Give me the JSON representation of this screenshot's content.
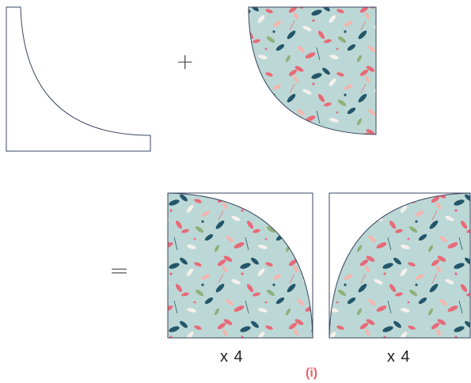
{
  "diagram": {
    "operators": {
      "plus": "+",
      "equals": "="
    },
    "multiplier_left": "x 4",
    "multiplier_right": "x 4",
    "caption": "(i)",
    "colors": {
      "fabric_background": "#bcd8d6",
      "leaf_pink": "#e86a78",
      "leaf_blush": "#f2b6ae",
      "leaf_teal": "#24566a",
      "leaf_white": "#f6f1ee",
      "leaf_green": "#8fb07a",
      "outline": "#3a4660"
    }
  }
}
